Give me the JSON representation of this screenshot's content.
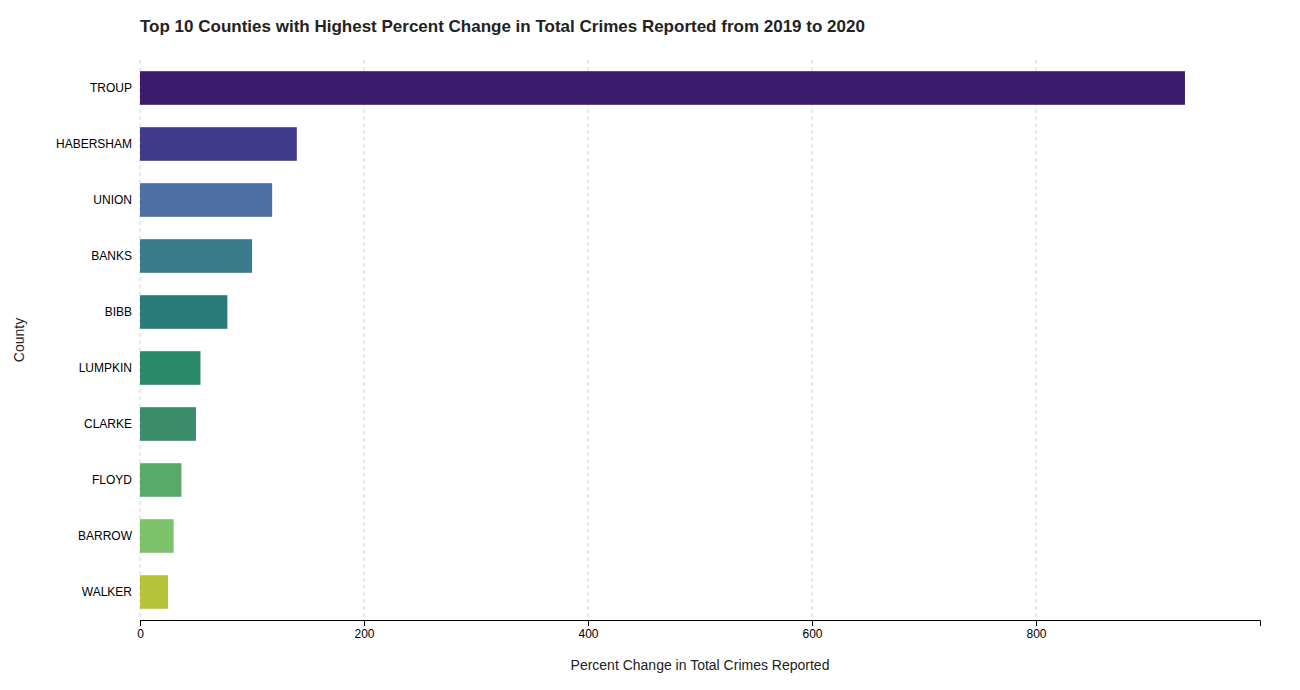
{
  "chart_data": {
    "type": "bar",
    "orientation": "horizontal",
    "title": "Top 10 Counties with Highest Percent Change in Total Crimes Reported from 2019 to 2020",
    "xlabel": "Percent Change in Total Crimes Reported",
    "ylabel": "County",
    "categories": [
      "WALKER",
      "BARROW",
      "FLOYD",
      "CLARKE",
      "LUMPKIN",
      "BIBB",
      "BANKS",
      "UNION",
      "HABERSHAM",
      "TROUP"
    ],
    "values": [
      25,
      30,
      37,
      50,
      54,
      78,
      100,
      118,
      140,
      933
    ],
    "colors": [
      "#b5c43a",
      "#7cc26a",
      "#5aaa6a",
      "#3a8c6a",
      "#2b8a6a",
      "#2a7c7a",
      "#3a7b8c",
      "#4d6fa3",
      "#3f3a8a",
      "#3b1a6b"
    ],
    "xlim": [
      0,
      1000
    ],
    "xticks": [
      0,
      200,
      400,
      600,
      800
    ],
    "grid": true
  }
}
